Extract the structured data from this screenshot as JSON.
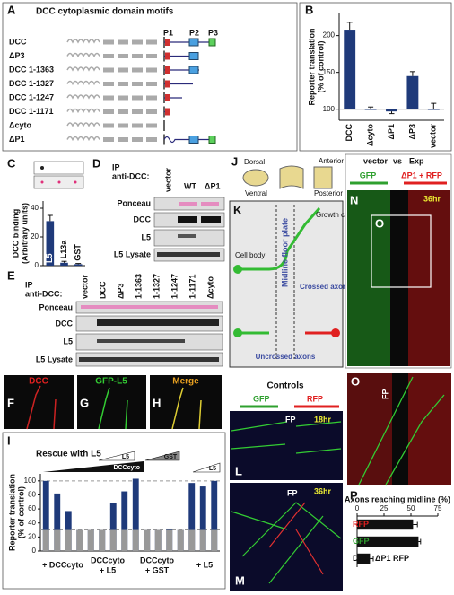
{
  "panel_a": {
    "label": "A",
    "title": "DCC cytoplasmic domain motifs",
    "motifs": [
      "P1",
      "P2",
      "P3"
    ],
    "constructs": [
      "DCC",
      "ΔP3",
      "DCC 1-1363",
      "DCC 1-1327",
      "DCC 1-1247",
      "DCC 1-1171",
      "Δcyto",
      "ΔP1"
    ]
  },
  "panel_d": {
    "label": "D",
    "ip": [
      "IP",
      "anti-DCC:"
    ],
    "lanes": [
      "vector",
      "WT",
      "ΔP1"
    ],
    "rows": [
      "Ponceau",
      "DCC",
      "L5",
      "L5 Lysate"
    ]
  },
  "panel_e": {
    "label": "E",
    "ip": [
      "IP",
      "anti-DCC:"
    ],
    "lanes": [
      "vector",
      "DCC",
      "ΔP3",
      "1-1363",
      "1-1327",
      "1-1247",
      "1-1171",
      "Δcyto"
    ],
    "rows": [
      "Ponceau",
      "DCC",
      "L5",
      "L5 Lysate"
    ]
  },
  "panel_fgh": [
    {
      "label": "F",
      "stain": "DCC"
    },
    {
      "label": "G",
      "stain": "GFP-L5"
    },
    {
      "label": "H",
      "stain": "Merge"
    }
  ],
  "panel_j": {
    "label": "J",
    "axes": [
      "Dorsal",
      "Ventral",
      "Anterior",
      "Posterior"
    ]
  },
  "panel_k": {
    "label": "K",
    "texts": [
      "Growth cone",
      "Midline floor plate",
      "Cell body",
      "Crossed axon",
      "Uncrossed axons"
    ]
  },
  "panel_lm": {
    "title": "Controls",
    "channels": [
      "GFP",
      "RFP"
    ],
    "panels": [
      {
        "label": "L",
        "time": "18hr",
        "marker": "FP"
      },
      {
        "label": "M",
        "time": "36hr",
        "marker": "FP"
      }
    ]
  },
  "panel_n": {
    "label": "N",
    "header": [
      "vector",
      "vs",
      "Exp"
    ],
    "channels": [
      "GFP",
      "ΔP1 + RFP"
    ],
    "time": "36hr",
    "inset": "O"
  },
  "panel_o": {
    "label": "O",
    "marker": "FP"
  },
  "chart_data": [
    {
      "type": "bar",
      "panel": "B",
      "ylabel": [
        "Reporter translation",
        "(% of control)"
      ],
      "categories": [
        "DCC",
        "Δcyto",
        "ΔP1",
        "ΔP3",
        "vector"
      ],
      "values": [
        208,
        100,
        97,
        145,
        100
      ],
      "errors": [
        10,
        3,
        3,
        6,
        8
      ],
      "color": "#1f3a7a",
      "baseline": 100,
      "ylim": [
        85,
        230
      ],
      "yticks": [
        100,
        150,
        200
      ]
    },
    {
      "type": "bar",
      "panel": "C",
      "ylabel": [
        "DCC binding",
        "(Arbitrary units)"
      ],
      "categories": [
        "L5",
        "L13a",
        "GST"
      ],
      "values": [
        31,
        2,
        1
      ],
      "errors": [
        4,
        1,
        0.5
      ],
      "color": "#1f3a7a",
      "baseline": 0,
      "ylim": [
        0,
        45
      ],
      "yticks": [
        0,
        20,
        40
      ]
    },
    {
      "type": "bar",
      "panel": "I",
      "title": "Rescue with L5",
      "ylabel": [
        "Reporter translation",
        "(% of control)"
      ],
      "categories": [
        null,
        null,
        null,
        null,
        null,
        null,
        null,
        null,
        null,
        null,
        null,
        null,
        null,
        null,
        null,
        null
      ],
      "values": [
        100,
        82,
        57,
        30,
        30,
        30,
        68,
        85,
        103,
        30,
        30,
        32,
        30,
        97,
        92,
        100
      ],
      "color": "#1f3a7a",
      "shade_color": "#999",
      "baseline": 0,
      "reference_lines": [
        30,
        100
      ],
      "ylim": [
        0,
        110
      ],
      "yticks": [
        0,
        20,
        40,
        60,
        80,
        100
      ],
      "groups": [
        "+ DCCcyto",
        "DCCcyto",
        "+ L5",
        "DCCcyto",
        "+ GST",
        "+ L5"
      ],
      "wedges": [
        "L5",
        "GST",
        "DCCcyto",
        "L5"
      ]
    },
    {
      "type": "barh",
      "panel": "P",
      "title": "Axons reaching midline (%)",
      "categories": [
        "RFP",
        "GFP",
        "DCC- ΔP1 RFP"
      ],
      "label_colors": [
        "#e02020",
        "#2fa02f",
        "#111"
      ],
      "values": [
        52,
        57,
        12
      ],
      "errors": [
        4,
        2,
        3
      ],
      "color": "#111",
      "xlim": [
        0,
        75
      ],
      "xticks": [
        0,
        25,
        50,
        75
      ]
    }
  ]
}
